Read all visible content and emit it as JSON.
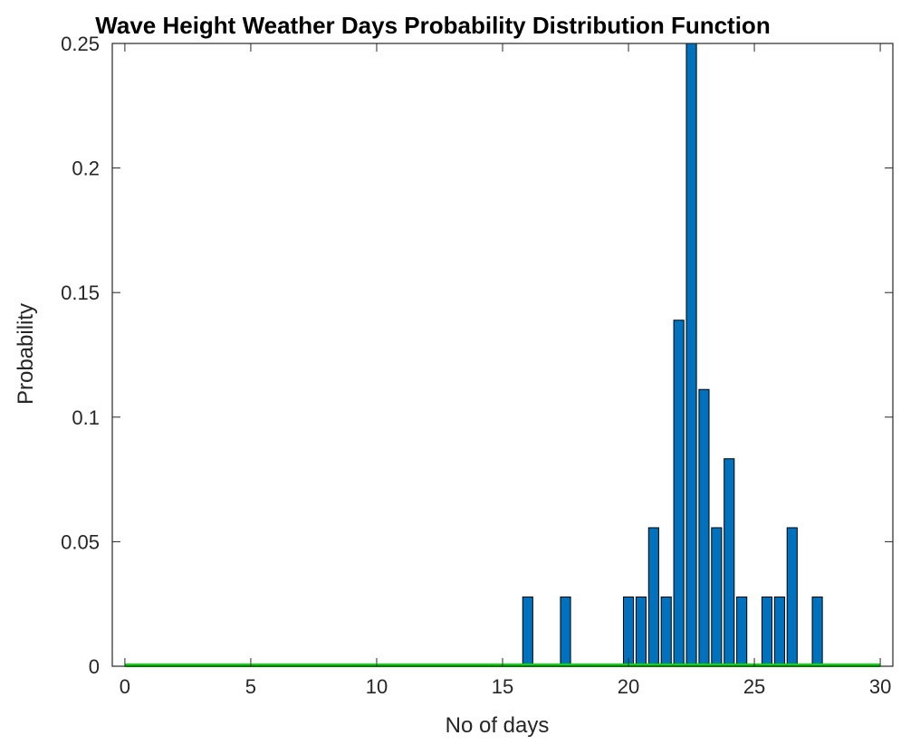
{
  "chart_data": {
    "type": "bar",
    "title": "Wave Height Weather Days Probability Distribution Function",
    "xlabel": "No of days",
    "ylabel": "Probability",
    "xlim": [
      -0.5,
      30.5
    ],
    "ylim": [
      0,
      0.25
    ],
    "xticks": [
      0,
      5,
      10,
      15,
      20,
      25,
      30
    ],
    "xtick_labels": [
      "0",
      "5",
      "10",
      "15",
      "20",
      "25",
      "30"
    ],
    "yticks": [
      0,
      0.05,
      0.1,
      0.15,
      0.2,
      0.25
    ],
    "ytick_labels": [
      "0",
      "0.05",
      "0.1",
      "0.15",
      "0.2",
      "0.25"
    ],
    "grid": false,
    "bar_width": 0.4,
    "bar_color": "#0072BD",
    "baseline_color": "#00DD00",
    "x": [
      16,
      17.5,
      20,
      20.5,
      21,
      21.5,
      22,
      22.5,
      23,
      23.5,
      24,
      24.5,
      25.5,
      26,
      26.5,
      27.5
    ],
    "values": [
      0.0278,
      0.0278,
      0.0278,
      0.0278,
      0.0556,
      0.0278,
      0.1389,
      0.25,
      0.1111,
      0.0556,
      0.0833,
      0.0278,
      0.0278,
      0.0278,
      0.0556,
      0.0278
    ],
    "baseline": {
      "x": [
        0,
        30
      ],
      "y": 0
    }
  }
}
